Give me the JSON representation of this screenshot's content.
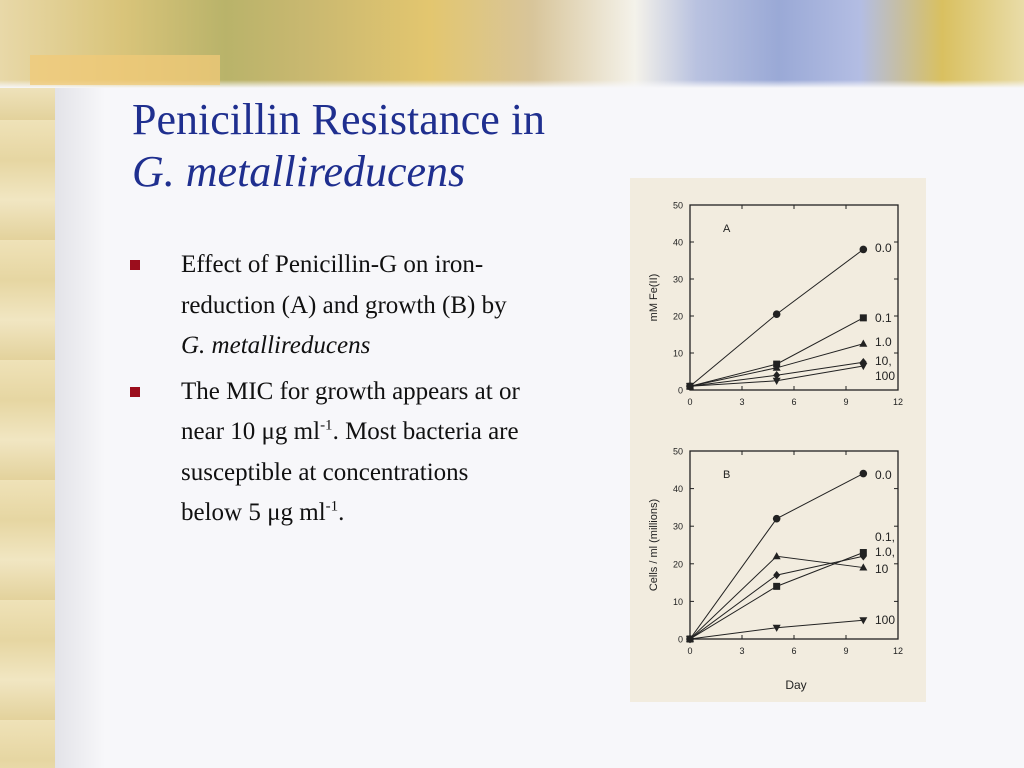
{
  "title": {
    "line1": "Penicillin Resistance in",
    "line2": "G. metallireducens"
  },
  "bullets": [
    {
      "text_a": "Effect of Penicillin-G on iron-reduction (A) and growth (B) by ",
      "italic": "G. metallireducens"
    },
    {
      "text_a": "The MIC for growth appears at or near 10 μg ml",
      "sup1": "-1",
      "text_b": ".  Most bacteria are susceptible at concentrations below 5 μg ml",
      "sup2": "-1",
      "text_c": "."
    }
  ],
  "colors": {
    "title": "#1f2f8f",
    "bullet": "#9b0d1c"
  },
  "chart_data": [
    {
      "type": "line",
      "panel_label": "A",
      "ylabel": "mM Fe(II)",
      "xlabel": "",
      "xlim": [
        0,
        12
      ],
      "ylim": [
        0,
        50
      ],
      "xticks": [
        "0",
        "3",
        "6",
        "9",
        "12"
      ],
      "yticks": [
        "0",
        "10",
        "20",
        "30",
        "40",
        "50"
      ],
      "series": [
        {
          "label": "0.0",
          "marker": "circle",
          "x": [
            0,
            5,
            10
          ],
          "y": [
            1,
            20.5,
            38
          ]
        },
        {
          "label": "0.1",
          "marker": "square",
          "x": [
            0,
            5,
            10
          ],
          "y": [
            1,
            7,
            19.5
          ]
        },
        {
          "label": "1.0",
          "marker": "triangle",
          "x": [
            0,
            5,
            10
          ],
          "y": [
            1,
            6,
            12.5
          ]
        },
        {
          "label": "10,",
          "marker": "diamond",
          "x": [
            0,
            5,
            10
          ],
          "y": [
            1,
            4,
            7.5
          ]
        },
        {
          "label": "100",
          "marker": "tri-down",
          "x": [
            0,
            5,
            10
          ],
          "y": [
            1,
            2.5,
            6.5
          ]
        }
      ]
    },
    {
      "type": "line",
      "panel_label": "B",
      "ylabel": "Cells / ml (millions)",
      "xlabel": "Day",
      "xlim": [
        0,
        12
      ],
      "ylim": [
        0,
        50
      ],
      "xticks": [
        "0",
        "3",
        "6",
        "9",
        "12"
      ],
      "yticks": [
        "0",
        "10",
        "20",
        "30",
        "40",
        "50"
      ],
      "series": [
        {
          "label": "0.0",
          "marker": "circle",
          "x": [
            0,
            5,
            10
          ],
          "y": [
            0,
            32,
            44
          ]
        },
        {
          "label": "0.1,",
          "marker": "square",
          "x": [
            0,
            5,
            10
          ],
          "y": [
            0,
            14,
            23
          ]
        },
        {
          "label": "1.0,",
          "marker": "diamond",
          "x": [
            0,
            5,
            10
          ],
          "y": [
            0,
            17,
            22
          ]
        },
        {
          "label": "10",
          "marker": "triangle",
          "x": [
            0,
            5,
            10
          ],
          "y": [
            0,
            22,
            19
          ]
        },
        {
          "label": "100",
          "marker": "tri-down",
          "x": [
            0,
            5,
            10
          ],
          "y": [
            0,
            3,
            5
          ]
        }
      ]
    }
  ]
}
